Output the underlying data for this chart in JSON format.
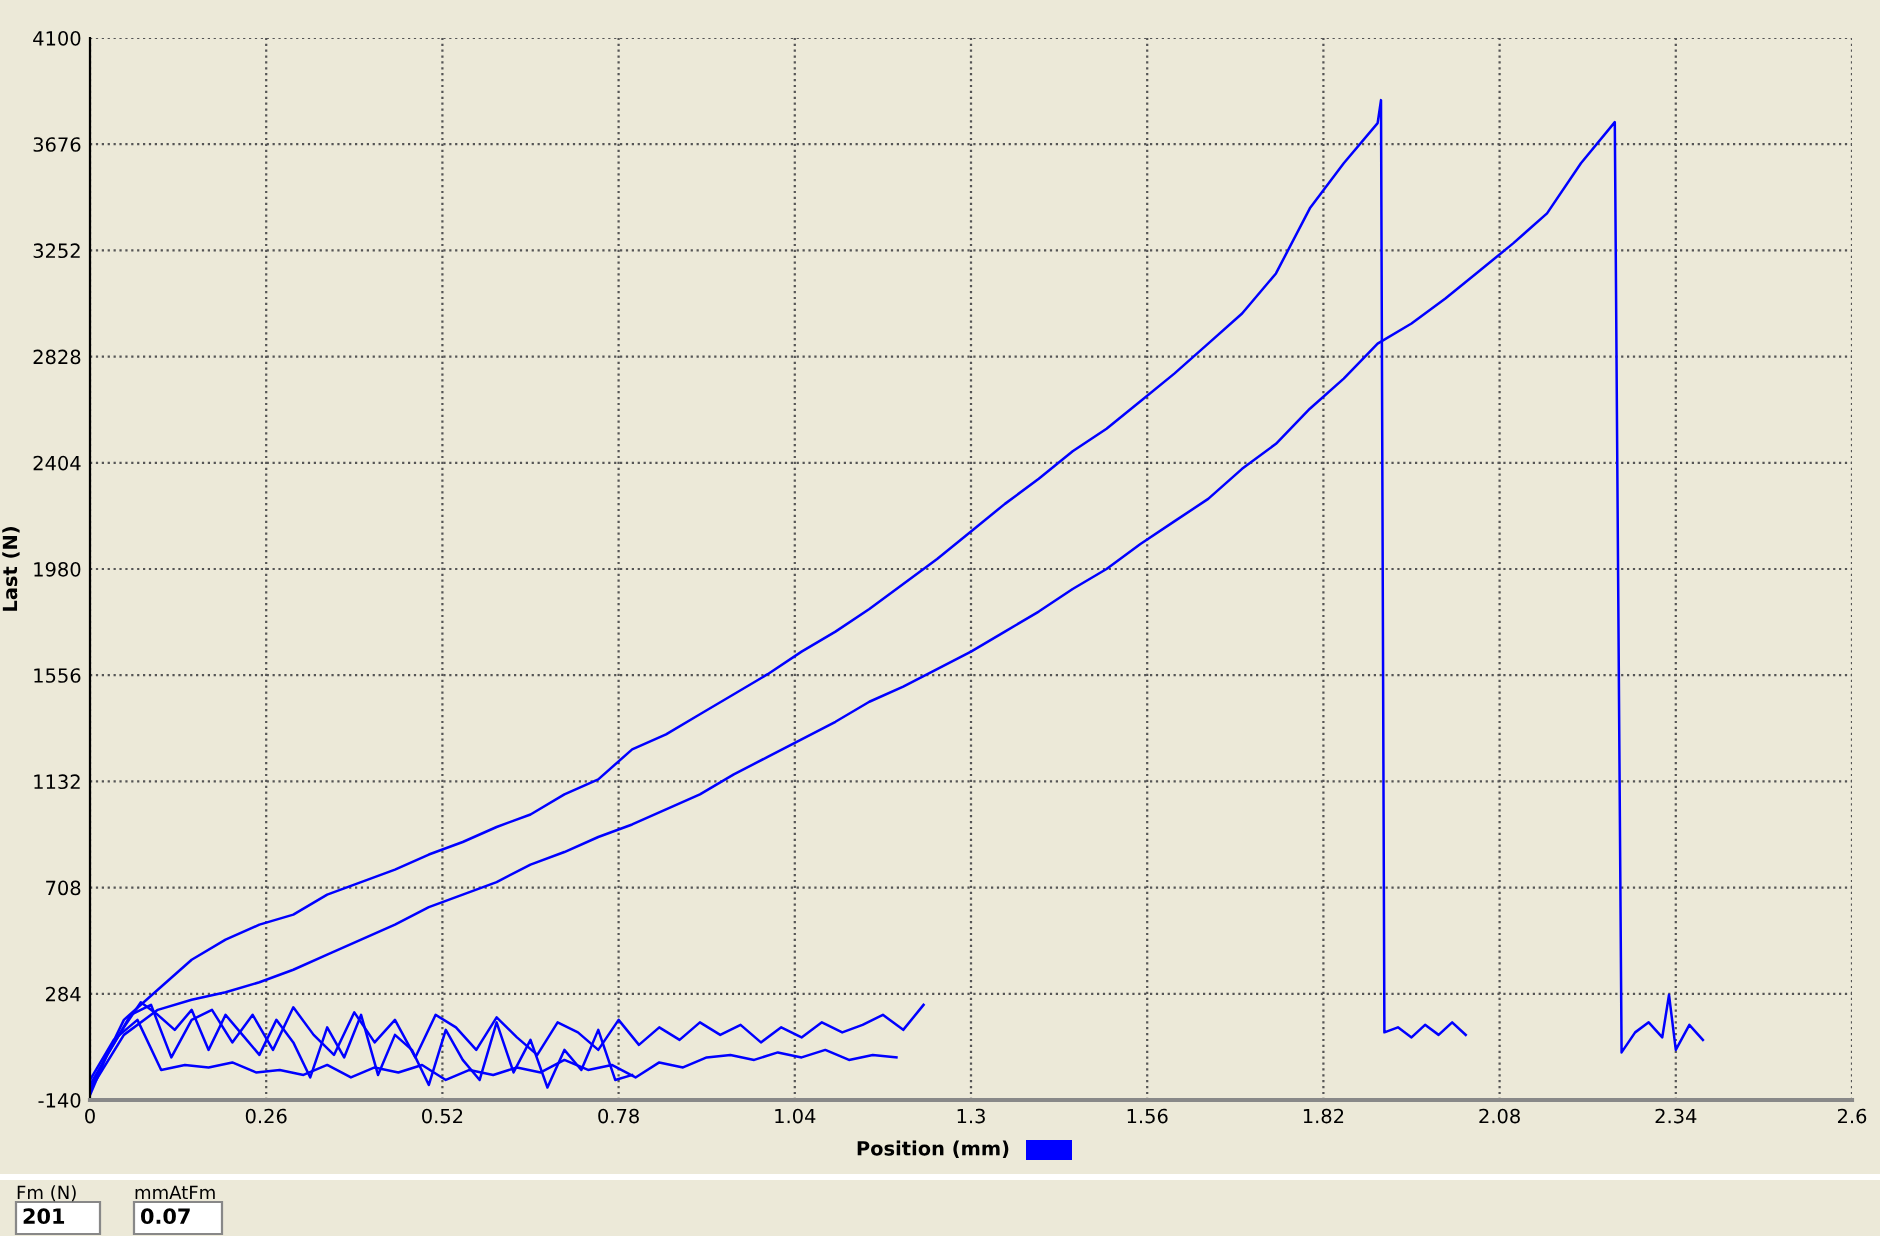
{
  "chart_data": {
    "type": "line",
    "xlabel": "Position (mm)",
    "ylabel": "Last (N)",
    "xlim": [
      0,
      2.6
    ],
    "ylim": [
      -140,
      4100
    ],
    "xticks": [
      0,
      0.26,
      0.52,
      0.78,
      1.04,
      1.3,
      1.56,
      1.82,
      2.08,
      2.34,
      2.6
    ],
    "yticks": [
      -140,
      284,
      708,
      1132,
      1556,
      1980,
      2404,
      2828,
      3252,
      3676,
      4100
    ],
    "grid": true,
    "marker": "none",
    "line_style": "solid",
    "annotations": [
      "Fm (N)",
      "201",
      "mmAtFm",
      "0.07"
    ],
    "series": [
      {
        "color": "#0000ff",
        "x": [
          0,
          0.05,
          0.1,
          0.15,
          0.2,
          0.25,
          0.3,
          0.35,
          0.4,
          0.45,
          0.5,
          0.55,
          0.6,
          0.65,
          0.7,
          0.75,
          0.8,
          0.85,
          0.9,
          0.95,
          1.0,
          1.05,
          1.1,
          1.15,
          1.2,
          1.25,
          1.3,
          1.35,
          1.4,
          1.45,
          1.5,
          1.55,
          1.6,
          1.65,
          1.7,
          1.75,
          1.8,
          1.85,
          1.9,
          1.905,
          1.91,
          1.93,
          1.95,
          1.97,
          1.99,
          2.01,
          2.03
        ],
        "values": [
          -100,
          180,
          300,
          420,
          500,
          560,
          600,
          680,
          730,
          780,
          840,
          890,
          950,
          1000,
          1080,
          1140,
          1260,
          1320,
          1400,
          1480,
          1560,
          1650,
          1730,
          1820,
          1920,
          2020,
          2130,
          2240,
          2340,
          2450,
          2540,
          2650,
          2760,
          2880,
          3000,
          3160,
          3420,
          3600,
          3760,
          3852,
          130,
          150,
          110,
          160,
          120,
          170,
          120
        ]
      },
      {
        "color": "#0000ff",
        "x": [
          0,
          0.05,
          0.1,
          0.15,
          0.2,
          0.25,
          0.3,
          0.35,
          0.4,
          0.45,
          0.5,
          0.55,
          0.6,
          0.65,
          0.7,
          0.75,
          0.8,
          0.85,
          0.9,
          0.95,
          1.0,
          1.05,
          1.1,
          1.15,
          1.2,
          1.25,
          1.3,
          1.35,
          1.4,
          1.45,
          1.5,
          1.55,
          1.6,
          1.65,
          1.7,
          1.75,
          1.8,
          1.85,
          1.9,
          1.95,
          2.0,
          2.05,
          2.1,
          2.15,
          2.2,
          2.25,
          2.26,
          2.28,
          2.3,
          2.32,
          2.33,
          2.34,
          2.36,
          2.38
        ],
        "values": [
          -100,
          120,
          220,
          260,
          290,
          330,
          380,
          440,
          500,
          560,
          630,
          680,
          730,
          800,
          850,
          910,
          960,
          1020,
          1080,
          1160,
          1230,
          1300,
          1370,
          1450,
          1510,
          1580,
          1650,
          1730,
          1810,
          1900,
          1980,
          2080,
          2170,
          2260,
          2380,
          2480,
          2620,
          2740,
          2880,
          2960,
          3060,
          3170,
          3280,
          3400,
          3600,
          3764,
          50,
          130,
          170,
          110,
          280,
          60,
          160,
          100
        ]
      },
      {
        "color": "#0000ff",
        "x": [
          0,
          0.03,
          0.06,
          0.09,
          0.12,
          0.15,
          0.18,
          0.21,
          0.24,
          0.27,
          0.3,
          0.33,
          0.36,
          0.39,
          0.42,
          0.45,
          0.48,
          0.51,
          0.54,
          0.57,
          0.6,
          0.63,
          0.66,
          0.69,
          0.72,
          0.75,
          0.78,
          0.81,
          0.84,
          0.87,
          0.9,
          0.93,
          0.96,
          0.99,
          1.02,
          1.05,
          1.08,
          1.11,
          1.14,
          1.17,
          1.2,
          1.23
        ],
        "values": [
          -80,
          60,
          200,
          240,
          30,
          180,
          220,
          90,
          200,
          60,
          230,
          120,
          40,
          210,
          90,
          180,
          30,
          200,
          150,
          60,
          190,
          110,
          40,
          170,
          130,
          60,
          180,
          80,
          150,
          100,
          170,
          120,
          160,
          90,
          150,
          110,
          170,
          130,
          160,
          200,
          140,
          240
        ]
      },
      {
        "color": "#0000ff",
        "x": [
          0,
          0.035,
          0.07,
          0.105,
          0.14,
          0.175,
          0.21,
          0.245,
          0.28,
          0.315,
          0.35,
          0.385,
          0.42,
          0.455,
          0.49,
          0.525,
          0.56,
          0.595,
          0.63,
          0.665,
          0.7,
          0.735,
          0.77,
          0.805,
          0.84,
          0.875,
          0.91,
          0.945,
          0.98,
          1.015,
          1.05,
          1.085,
          1.12,
          1.155,
          1.19
        ],
        "values": [
          -60,
          100,
          180,
          -20,
          0,
          -10,
          10,
          -30,
          -20,
          -40,
          0,
          -50,
          -10,
          -30,
          0,
          -60,
          -20,
          -40,
          -10,
          -30,
          20,
          -20,
          0,
          -50,
          10,
          -10,
          30,
          40,
          20,
          50,
          30,
          60,
          20,
          40,
          30
        ]
      },
      {
        "color": "#0000ff",
        "x": [
          0,
          0.025,
          0.05,
          0.075,
          0.1,
          0.125,
          0.15,
          0.175,
          0.2,
          0.225,
          0.25,
          0.275,
          0.3,
          0.325,
          0.35,
          0.375,
          0.4,
          0.425,
          0.45,
          0.475,
          0.5,
          0.525,
          0.55,
          0.575,
          0.6,
          0.625,
          0.65,
          0.675,
          0.7,
          0.725,
          0.75,
          0.775,
          0.8
        ],
        "values": [
          -120,
          40,
          150,
          250,
          200,
          140,
          220,
          60,
          200,
          120,
          40,
          180,
          90,
          -50,
          150,
          30,
          200,
          -40,
          120,
          60,
          -80,
          140,
          20,
          -60,
          170,
          -30,
          100,
          -90,
          60,
          -20,
          140,
          -60,
          -40
        ]
      }
    ]
  }
}
